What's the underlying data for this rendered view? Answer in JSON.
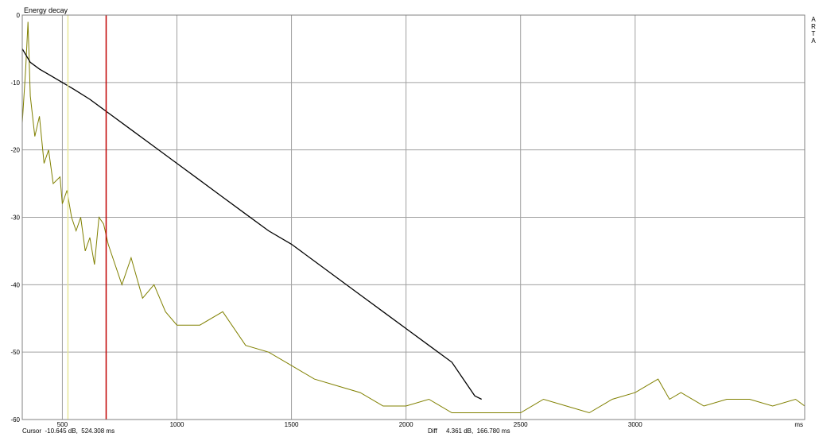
{
  "chart_data": {
    "type": "line",
    "title": "Energy decay",
    "xlabel": "ms",
    "ylabel": "",
    "xlim": [
      325,
      3740
    ],
    "ylim": [
      -60,
      0
    ],
    "x_ticks": [
      500,
      1000,
      1500,
      2000,
      2500,
      3000
    ],
    "x_unit_label": "ms",
    "y_ticks": [
      0,
      -10,
      -20,
      -30,
      -40,
      -50,
      -60
    ],
    "grid": true,
    "series": [
      {
        "color": "#808000",
        "x": [
          325,
          340,
          350,
          360,
          380,
          400,
          420,
          440,
          460,
          490,
          500,
          520,
          540,
          560,
          580,
          600,
          620,
          640,
          660,
          680,
          700,
          720,
          760,
          800,
          850,
          900,
          950,
          1000,
          1100,
          1200,
          1300,
          1400,
          1500,
          1600,
          1700,
          1800,
          1900,
          2000,
          2100,
          2200,
          2300,
          2400,
          2500,
          2600,
          2700,
          2800,
          2900,
          3000,
          3050,
          3100,
          3150,
          3200,
          3300,
          3400,
          3500,
          3600,
          3700,
          3740
        ],
        "values": [
          -16,
          -8,
          -1,
          -12,
          -18,
          -15,
          -22,
          -20,
          -25,
          -24,
          -28,
          -26,
          -30,
          -32,
          -30,
          -35,
          -33,
          -37,
          -30,
          -31,
          -34,
          -36,
          -40,
          -36,
          -42,
          -40,
          -44,
          -46,
          -46,
          -44,
          -49,
          -50,
          -52,
          -54,
          -55,
          -56,
          -58,
          -58,
          -57,
          -59,
          -59,
          -59,
          -59,
          -57,
          -58,
          -59,
          -57,
          -56,
          -55,
          -54,
          -57,
          -56,
          -58,
          -57,
          -57,
          -58,
          -57,
          -58
        ]
      },
      {
        "color": "#000000",
        "x": [
          325,
          360,
          400,
          450,
          500,
          550,
          620,
          700,
          800,
          900,
          1000,
          1100,
          1200,
          1300,
          1400,
          1500,
          1600,
          1700,
          1800,
          1900,
          2000,
          2100,
          2200,
          2250,
          2300,
          2330
        ],
        "values": [
          -5,
          -7,
          -8,
          -9,
          -10,
          -11,
          -12.5,
          -14.5,
          -17,
          -19.5,
          -22,
          -24.5,
          -27,
          -29.5,
          -32,
          -34,
          -36.5,
          -39,
          -41.5,
          -44,
          -46.5,
          -49,
          -51.5,
          -54,
          -56.5,
          -57
        ]
      }
    ],
    "markers": [
      {
        "x": 524.308,
        "color": "#e8e89a"
      },
      {
        "x": 691.088,
        "color": "#c00000"
      }
    ],
    "brand_letters": [
      "A",
      "R",
      "T",
      "A"
    ],
    "cursor_readout": "Cursor  -10.645 dB,  524.308 ms",
    "diff_readout": "Diff     4.361 dB,  166.780 ms"
  }
}
